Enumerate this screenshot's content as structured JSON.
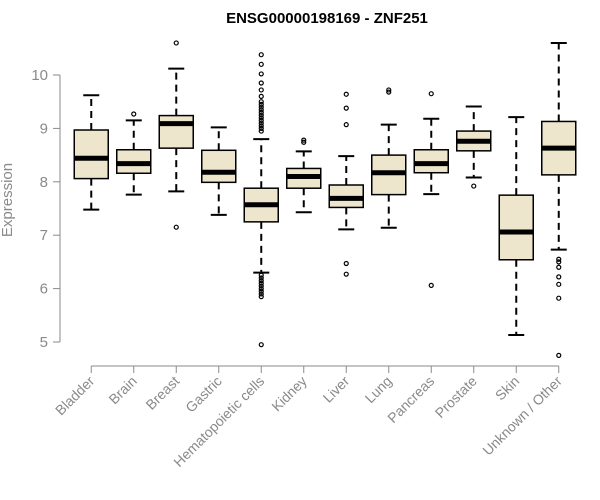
{
  "chart_data": {
    "type": "boxplot",
    "title": "ENSG00000198169 - ZNF251",
    "ylabel": "Expression",
    "xlabel": "",
    "ylim": [
      4.7,
      10.75
    ],
    "yticks": [
      5,
      6,
      7,
      8,
      9,
      10
    ],
    "box_fill": "#ede6cc",
    "categories": [
      "Bladder",
      "Brain",
      "Breast",
      "Gastric",
      "Hematopoietic cells",
      "Kidney",
      "Liver",
      "Lung",
      "Pancreas",
      "Prostate",
      "Skin",
      "Unknown / Other"
    ],
    "boxes": [
      {
        "name": "Bladder",
        "whisker_low": 7.48,
        "q1": 8.06,
        "median": 8.44,
        "q3": 8.97,
        "whisker_high": 9.62,
        "outliers": []
      },
      {
        "name": "Brain",
        "whisker_low": 7.76,
        "q1": 8.16,
        "median": 8.34,
        "q3": 8.6,
        "whisker_high": 9.15,
        "outliers": [
          9.27
        ]
      },
      {
        "name": "Breast",
        "whisker_low": 7.82,
        "q1": 8.63,
        "median": 9.09,
        "q3": 9.24,
        "whisker_high": 10.12,
        "outliers": [
          10.6,
          7.15
        ]
      },
      {
        "name": "Gastric",
        "whisker_low": 7.38,
        "q1": 7.99,
        "median": 8.18,
        "q3": 8.59,
        "whisker_high": 9.02,
        "outliers": []
      },
      {
        "name": "Hematopoietic cells",
        "whisker_low": 6.3,
        "q1": 7.25,
        "median": 7.57,
        "q3": 7.88,
        "whisker_high": 8.8,
        "outliers": [
          10.38,
          10.2,
          10.02,
          9.85,
          9.72,
          9.6,
          9.5,
          9.45,
          9.4,
          9.35,
          9.3,
          9.25,
          9.2,
          9.15,
          9.1,
          9.05,
          9.0,
          8.95,
          6.25,
          6.2,
          6.15,
          6.1,
          6.05,
          6.0,
          5.95,
          5.9,
          5.85,
          4.95
        ]
      },
      {
        "name": "Kidney",
        "whisker_low": 7.43,
        "q1": 7.88,
        "median": 8.1,
        "q3": 8.25,
        "whisker_high": 8.57,
        "outliers": [
          8.78,
          8.74
        ]
      },
      {
        "name": "Liver",
        "whisker_low": 7.11,
        "q1": 7.52,
        "median": 7.69,
        "q3": 7.94,
        "whisker_high": 8.48,
        "outliers": [
          9.64,
          9.38,
          9.07,
          6.47,
          6.27
        ]
      },
      {
        "name": "Lung",
        "whisker_low": 7.14,
        "q1": 7.76,
        "median": 8.17,
        "q3": 8.5,
        "whisker_high": 9.07,
        "outliers": [
          9.72,
          9.68
        ]
      },
      {
        "name": "Pancreas",
        "whisker_low": 7.77,
        "q1": 8.17,
        "median": 8.34,
        "q3": 8.6,
        "whisker_high": 9.18,
        "outliers": [
          9.65,
          6.06
        ]
      },
      {
        "name": "Prostate",
        "whisker_low": 8.08,
        "q1": 8.58,
        "median": 8.76,
        "q3": 8.95,
        "whisker_high": 9.41,
        "outliers": [
          7.92
        ]
      },
      {
        "name": "Skin",
        "whisker_low": 5.13,
        "q1": 6.54,
        "median": 7.06,
        "q3": 7.75,
        "whisker_high": 9.21,
        "outliers": []
      },
      {
        "name": "Unknown / Other",
        "whisker_low": 6.73,
        "q1": 8.13,
        "median": 8.63,
        "q3": 9.13,
        "whisker_high": 10.6,
        "outliers": [
          6.55,
          6.5,
          6.4,
          6.22,
          6.08,
          5.82,
          4.75
        ]
      }
    ]
  }
}
